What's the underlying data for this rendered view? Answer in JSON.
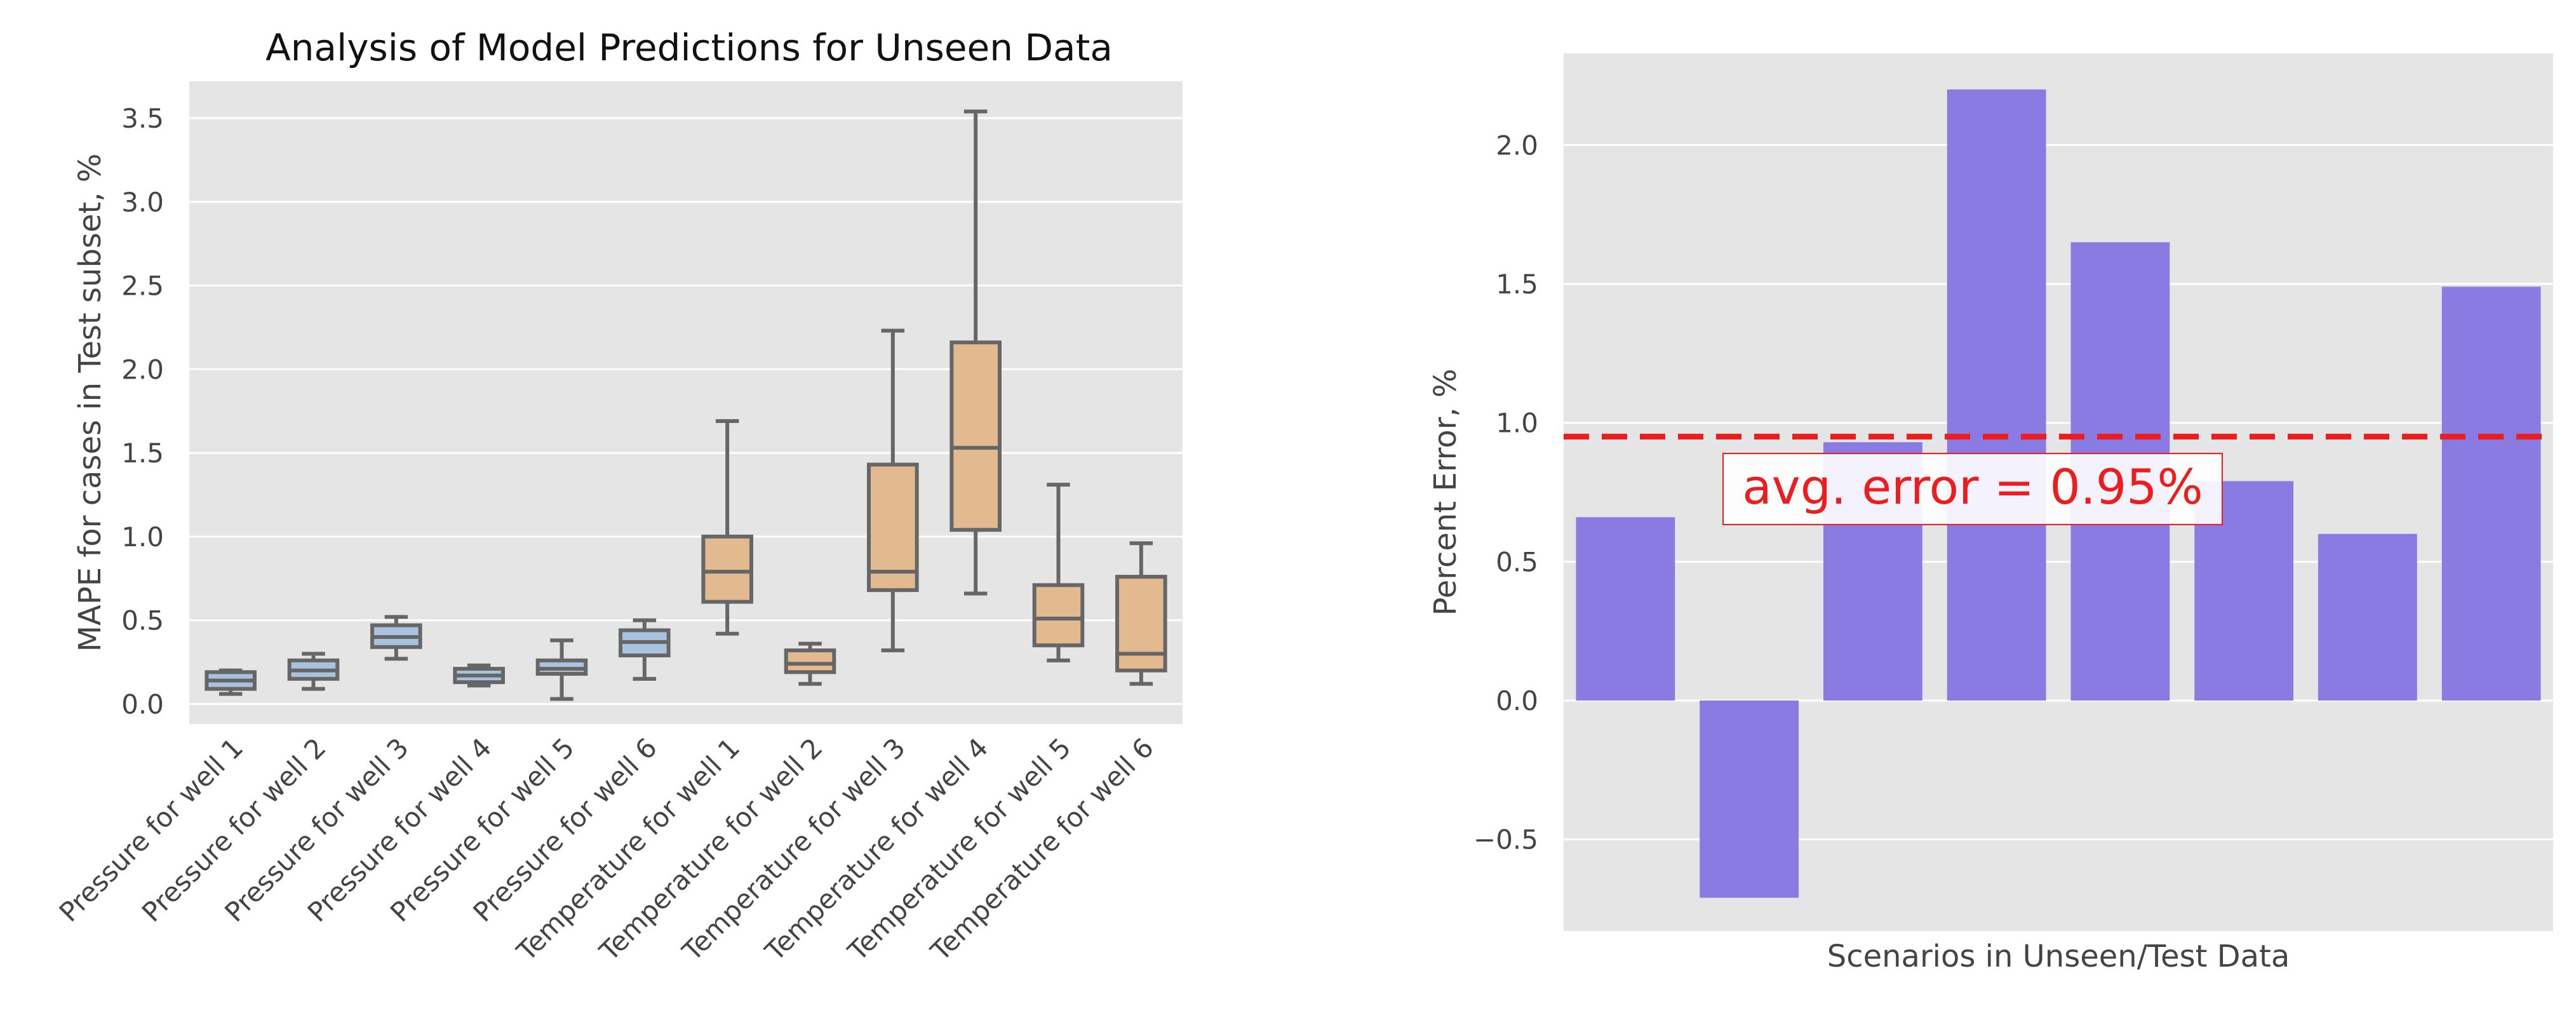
{
  "colors": {
    "plot_bg": "#e5e5e5",
    "grid": "#ffffff",
    "pressure_box": "#a9c3de",
    "temperature_box": "#e3b98f",
    "box_line": "#666666",
    "bar": "#8a7be3",
    "avg_line": "#ee1c1c",
    "avg_text": "#ee1c1c",
    "text": "#444444",
    "title": "#111111"
  },
  "chart_data": [
    {
      "type": "box",
      "title": "Analysis of Model Predictions for Unseen Data",
      "xlabel": "",
      "ylabel": "MAPE for cases in Test subset, %",
      "ylim": [
        -0.12,
        3.72
      ],
      "yticks": [
        0.0,
        0.5,
        1.0,
        1.5,
        2.0,
        2.5,
        3.0,
        3.5
      ],
      "ytick_labels": [
        "0.0",
        "0.5",
        "1.0",
        "1.5",
        "2.0",
        "2.5",
        "3.0",
        "3.5"
      ],
      "grid": true,
      "categories": [
        "Pressure for well 1",
        "Pressure for well 2",
        "Pressure for well 3",
        "Pressure for well 4",
        "Pressure for well 5",
        "Pressure for well 6",
        "Temperature for well 1",
        "Temperature for well 2",
        "Temperature for well 3",
        "Temperature for well 4",
        "Temperature for well 5",
        "Temperature for well 6"
      ],
      "groups": [
        "pressure",
        "pressure",
        "pressure",
        "pressure",
        "pressure",
        "pressure",
        "temperature",
        "temperature",
        "temperature",
        "temperature",
        "temperature",
        "temperature"
      ],
      "boxes": [
        {
          "whisker_low": 0.06,
          "q1": 0.09,
          "median": 0.14,
          "q3": 0.19,
          "whisker_high": 0.2
        },
        {
          "whisker_low": 0.09,
          "q1": 0.15,
          "median": 0.2,
          "q3": 0.26,
          "whisker_high": 0.3
        },
        {
          "whisker_low": 0.27,
          "q1": 0.34,
          "median": 0.4,
          "q3": 0.47,
          "whisker_high": 0.52
        },
        {
          "whisker_low": 0.11,
          "q1": 0.13,
          "median": 0.17,
          "q3": 0.21,
          "whisker_high": 0.23
        },
        {
          "whisker_low": 0.03,
          "q1": 0.18,
          "median": 0.21,
          "q3": 0.26,
          "whisker_high": 0.38
        },
        {
          "whisker_low": 0.15,
          "q1": 0.29,
          "median": 0.37,
          "q3": 0.44,
          "whisker_high": 0.5
        },
        {
          "whisker_low": 0.42,
          "q1": 0.61,
          "median": 0.79,
          "q3": 1.0,
          "whisker_high": 1.69
        },
        {
          "whisker_low": 0.12,
          "q1": 0.19,
          "median": 0.24,
          "q3": 0.32,
          "whisker_high": 0.36
        },
        {
          "whisker_low": 0.32,
          "q1": 0.68,
          "median": 0.79,
          "q3": 1.43,
          "whisker_high": 2.23
        },
        {
          "whisker_low": 0.66,
          "q1": 1.04,
          "median": 1.53,
          "q3": 2.16,
          "whisker_high": 3.54
        },
        {
          "whisker_low": 0.26,
          "q1": 0.35,
          "median": 0.51,
          "q3": 0.71,
          "whisker_high": 1.31
        },
        {
          "whisker_low": 0.12,
          "q1": 0.2,
          "median": 0.3,
          "q3": 0.76,
          "whisker_high": 0.96
        }
      ]
    },
    {
      "type": "bar",
      "title": "",
      "xlabel": "Scenarios in Unseen/Test Data",
      "ylabel": "Percent Error, %",
      "ylim": [
        -0.83,
        2.33
      ],
      "yticks": [
        -0.5,
        0.0,
        0.5,
        1.0,
        1.5,
        2.0
      ],
      "ytick_labels": [
        "−0.5",
        "0.0",
        "0.5",
        "1.0",
        "1.5",
        "2.0"
      ],
      "grid": true,
      "values": [
        0.66,
        -0.71,
        0.93,
        2.2,
        1.65,
        0.79,
        0.6,
        1.49
      ],
      "reference_line": {
        "value": 0.95,
        "style": "dashed"
      },
      "annotation": "avg. error = 0.95%"
    }
  ]
}
